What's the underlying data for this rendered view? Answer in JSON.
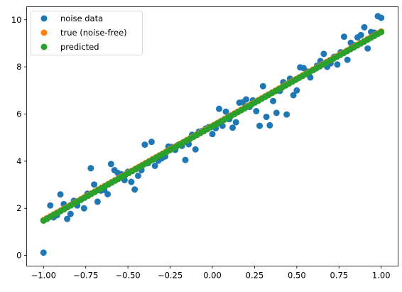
{
  "chart_data": {
    "type": "scatter",
    "title": "",
    "xlabel": "",
    "ylabel": "",
    "xlim": [
      -1.1,
      1.1
    ],
    "ylim": [
      -0.45,
      10.55
    ],
    "x_ticks": [
      -1.0,
      -0.75,
      -0.5,
      -0.25,
      0.0,
      0.25,
      0.5,
      0.75,
      1.0
    ],
    "x_tick_labels": [
      "−1.00",
      "−0.75",
      "−0.50",
      "−0.25",
      "0.00",
      "0.25",
      "0.50",
      "0.75",
      "1.00"
    ],
    "y_ticks": [
      0,
      2,
      4,
      6,
      8,
      10
    ],
    "y_tick_labels": [
      "0",
      "2",
      "4",
      "6",
      "8",
      "10"
    ],
    "grid": false,
    "legend_position": "top-left",
    "line_model": {
      "slope": 4.0,
      "intercept": 5.5,
      "n_points": 100,
      "x_start": -1.0,
      "x_end": 1.0
    },
    "series": [
      {
        "name": "noise data",
        "color": "#1f77b4",
        "points": [
          [
            -1.0,
            0.12
          ],
          [
            -0.98,
            1.55
          ],
          [
            -0.96,
            2.12
          ],
          [
            -0.94,
            1.62
          ],
          [
            -0.92,
            1.71
          ],
          [
            -0.9,
            2.59
          ],
          [
            -0.88,
            2.18
          ],
          [
            -0.86,
            1.55
          ],
          [
            -0.84,
            1.76
          ],
          [
            -0.82,
            2.32
          ],
          [
            -0.8,
            2.12
          ],
          [
            -0.78,
            2.36
          ],
          [
            -0.76,
            2.0
          ],
          [
            -0.74,
            2.62
          ],
          [
            -0.72,
            3.7
          ],
          [
            -0.7,
            3.01
          ],
          [
            -0.68,
            2.28
          ],
          [
            -0.66,
            2.75
          ],
          [
            -0.64,
            2.78
          ],
          [
            -0.62,
            2.6
          ],
          [
            -0.6,
            3.88
          ],
          [
            -0.58,
            3.62
          ],
          [
            -0.56,
            3.5
          ],
          [
            -0.54,
            3.45
          ],
          [
            -0.52,
            3.2
          ],
          [
            -0.5,
            3.55
          ],
          [
            -0.48,
            3.12
          ],
          [
            -0.46,
            2.8
          ],
          [
            -0.44,
            3.38
          ],
          [
            -0.42,
            3.62
          ],
          [
            -0.4,
            4.7
          ],
          [
            -0.38,
            3.92
          ],
          [
            -0.36,
            4.82
          ],
          [
            -0.34,
            3.8
          ],
          [
            -0.32,
            4.02
          ],
          [
            -0.3,
            4.12
          ],
          [
            -0.28,
            4.2
          ],
          [
            -0.26,
            4.62
          ],
          [
            -0.24,
            4.6
          ],
          [
            -0.22,
            4.48
          ],
          [
            -0.2,
            4.7
          ],
          [
            -0.18,
            4.65
          ],
          [
            -0.16,
            4.05
          ],
          [
            -0.14,
            4.72
          ],
          [
            -0.12,
            5.12
          ],
          [
            -0.1,
            4.5
          ],
          [
            -0.08,
            5.25
          ],
          [
            -0.06,
            5.28
          ],
          [
            -0.04,
            5.38
          ],
          [
            -0.02,
            5.45
          ],
          [
            0.0,
            5.15
          ],
          [
            0.02,
            5.4
          ],
          [
            0.04,
            6.22
          ],
          [
            0.06,
            5.5
          ],
          [
            0.08,
            6.1
          ],
          [
            0.1,
            5.78
          ],
          [
            0.12,
            5.42
          ],
          [
            0.14,
            5.65
          ],
          [
            0.16,
            6.48
          ],
          [
            0.18,
            6.5
          ],
          [
            0.2,
            6.62
          ],
          [
            0.22,
            6.3
          ],
          [
            0.24,
            6.58
          ],
          [
            0.26,
            6.12
          ],
          [
            0.28,
            5.5
          ],
          [
            0.3,
            7.18
          ],
          [
            0.32,
            5.88
          ],
          [
            0.34,
            5.52
          ],
          [
            0.36,
            6.55
          ],
          [
            0.38,
            6.05
          ],
          [
            0.4,
            6.98
          ],
          [
            0.42,
            7.35
          ],
          [
            0.44,
            5.98
          ],
          [
            0.46,
            7.5
          ],
          [
            0.48,
            6.8
          ],
          [
            0.5,
            7.0
          ],
          [
            0.52,
            7.98
          ],
          [
            0.54,
            7.95
          ],
          [
            0.56,
            7.8
          ],
          [
            0.58,
            7.55
          ],
          [
            0.6,
            7.88
          ],
          [
            0.62,
            8.05
          ],
          [
            0.64,
            8.25
          ],
          [
            0.66,
            8.55
          ],
          [
            0.68,
            8.0
          ],
          [
            0.7,
            8.15
          ],
          [
            0.72,
            8.42
          ],
          [
            0.74,
            8.1
          ],
          [
            0.76,
            8.62
          ],
          [
            0.78,
            9.28
          ],
          [
            0.8,
            8.3
          ],
          [
            0.82,
            9.02
          ],
          [
            0.84,
            8.92
          ],
          [
            0.86,
            9.25
          ],
          [
            0.88,
            9.35
          ],
          [
            0.9,
            9.68
          ],
          [
            0.92,
            8.78
          ],
          [
            0.94,
            9.48
          ],
          [
            0.96,
            9.45
          ],
          [
            0.98,
            10.15
          ],
          [
            1.0,
            10.08
          ]
        ]
      },
      {
        "name": "true (noise-free)",
        "color": "#ff7f0e"
      },
      {
        "name": "predicted",
        "color": "#2ca02c"
      }
    ]
  }
}
